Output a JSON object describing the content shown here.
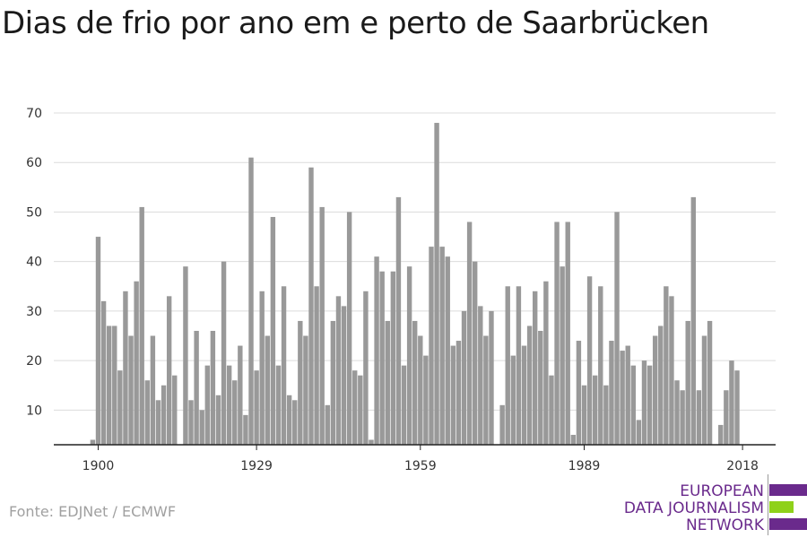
{
  "title": "Dias de frio por ano em e perto de Saarbrücken",
  "source": "Fonte: EDJNet / ECMWF",
  "logo": {
    "lines": [
      "EUROPEAN",
      "DATA JOURNALISM",
      "NETWORK"
    ],
    "colors": {
      "text": "#6a2a8c",
      "bar_purple": "#6a2a8c",
      "bar_green": "#8fd11a"
    }
  },
  "chart_data": {
    "type": "bar",
    "title": "Dias de frio por ano em e perto de Saarbrücken",
    "xlabel": "",
    "ylabel": "",
    "x_start": 1900,
    "x_end": 2018,
    "ylim": [
      3,
      70
    ],
    "y_ticks": [
      10,
      20,
      30,
      40,
      50,
      60,
      70
    ],
    "x_ticks": [
      1900,
      1929,
      1959,
      1989,
      2018
    ],
    "grid": true,
    "bar_color": "#999999",
    "x": [
      1899,
      1900,
      1901,
      1902,
      1903,
      1904,
      1905,
      1906,
      1907,
      1908,
      1909,
      1910,
      1911,
      1912,
      1913,
      1914,
      1915,
      1916,
      1917,
      1918,
      1919,
      1920,
      1921,
      1922,
      1923,
      1924,
      1925,
      1926,
      1927,
      1928,
      1929,
      1930,
      1931,
      1932,
      1933,
      1934,
      1935,
      1936,
      1937,
      1938,
      1939,
      1940,
      1941,
      1942,
      1943,
      1944,
      1945,
      1946,
      1947,
      1948,
      1949,
      1950,
      1951,
      1952,
      1953,
      1954,
      1955,
      1956,
      1957,
      1958,
      1959,
      1960,
      1961,
      1962,
      1963,
      1964,
      1965,
      1966,
      1967,
      1968,
      1969,
      1970,
      1971,
      1972,
      1973,
      1974,
      1975,
      1976,
      1977,
      1978,
      1979,
      1980,
      1981,
      1982,
      1983,
      1984,
      1985,
      1986,
      1987,
      1988,
      1989,
      1990,
      1991,
      1992,
      1993,
      1994,
      1995,
      1996,
      1997,
      1998,
      1999,
      2000,
      2001,
      2002,
      2003,
      2004,
      2005,
      2006,
      2007,
      2008,
      2009,
      2010,
      2011,
      2012,
      2013,
      2014,
      2015,
      2016,
      2017,
      2018
    ],
    "values": [
      4,
      45,
      32,
      27,
      27,
      18,
      34,
      25,
      36,
      51,
      16,
      25,
      12,
      15,
      33,
      17,
      0,
      39,
      12,
      26,
      10,
      19,
      26,
      13,
      40,
      19,
      16,
      23,
      9,
      61,
      18,
      34,
      25,
      49,
      19,
      35,
      13,
      12,
      28,
      25,
      59,
      35,
      51,
      11,
      28,
      33,
      31,
      50,
      18,
      17,
      34,
      4,
      41,
      38,
      28,
      38,
      53,
      19,
      39,
      28,
      25,
      21,
      43,
      68,
      43,
      41,
      23,
      24,
      30,
      48,
      40,
      31,
      25,
      30,
      0,
      11,
      35,
      21,
      35,
      23,
      27,
      34,
      26,
      36,
      17,
      48,
      39,
      48,
      5,
      24,
      15,
      37,
      17,
      35,
      15,
      24,
      50,
      22,
      23,
      19,
      8,
      20,
      19,
      25,
      27,
      35,
      33,
      16,
      14,
      28,
      53,
      14,
      25,
      28,
      2,
      7,
      14,
      20,
      18,
      0
    ]
  }
}
